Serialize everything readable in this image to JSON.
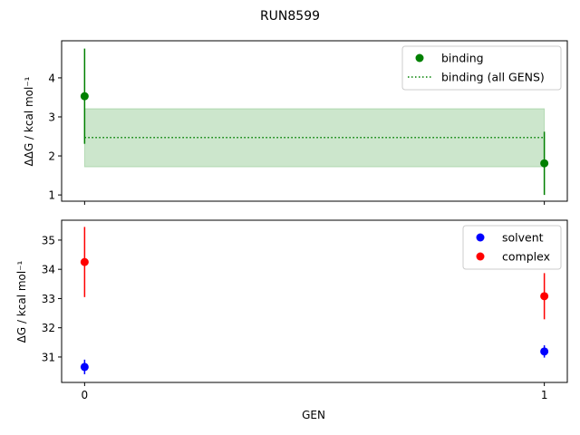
{
  "chart_data": [
    {
      "type": "scatter",
      "title": "RUN8599",
      "ylabel": "ΔΔG / kcal mol⁻¹",
      "xlim": [
        -0.05,
        1.05
      ],
      "ylim": [
        0.84,
        4.95
      ],
      "yticks": [
        1,
        2,
        3,
        4
      ],
      "xticks": [
        0,
        1
      ],
      "legend": "top-right",
      "series": [
        {
          "name": "binding",
          "color": "#008000",
          "x": [
            0,
            1
          ],
          "y": [
            3.53,
            1.81
          ],
          "yerr": [
            1.22,
            0.81
          ]
        }
      ],
      "reference": {
        "name": "binding (all GENS)",
        "color": "#008000",
        "value": 2.47,
        "band": [
          1.72,
          3.21
        ],
        "x_range": [
          0,
          1
        ]
      }
    },
    {
      "type": "scatter",
      "xlabel": "GEN",
      "ylabel": "ΔG / kcal mol⁻¹",
      "xlim": [
        -0.05,
        1.05
      ],
      "ylim": [
        30.13,
        35.68
      ],
      "yticks": [
        31,
        32,
        33,
        34,
        35
      ],
      "xticks": [
        0,
        1
      ],
      "xticklabels": [
        "0",
        "1"
      ],
      "legend": "top-right",
      "series": [
        {
          "name": "solvent",
          "color": "#0000ff",
          "x": [
            0,
            1
          ],
          "y": [
            30.66,
            31.19
          ],
          "yerr": [
            0.25,
            0.21
          ]
        },
        {
          "name": "complex",
          "color": "#ff0000",
          "x": [
            0,
            1
          ],
          "y": [
            34.25,
            33.08
          ],
          "yerr": [
            1.2,
            0.79
          ]
        }
      ]
    }
  ]
}
